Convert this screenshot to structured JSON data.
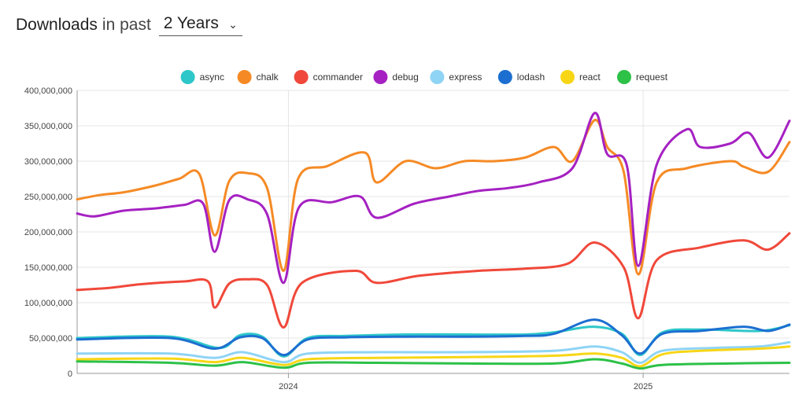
{
  "header": {
    "title": "Downloads",
    "title_rest": "in past",
    "range_value": "2 Years"
  },
  "chart_data": {
    "type": "line",
    "title": "",
    "xlabel": "",
    "ylabel": "",
    "ylim": [
      0,
      400000000
    ],
    "yticks": [
      0,
      50000000,
      100000000,
      150000000,
      200000000,
      250000000,
      300000000,
      350000000,
      400000000
    ],
    "ytick_labels": [
      "0",
      "50,000,000",
      "100,000,000",
      "150,000,000",
      "200,000,000",
      "250,000,000",
      "300,000,000",
      "350,000,000",
      "400,000,000"
    ],
    "xlim": [
      "2023-05-28",
      "2025-06-01"
    ],
    "xticks": [
      "2024-01-01",
      "2025-01-01"
    ],
    "xtick_labels": [
      "2024",
      "2025"
    ],
    "grid": true,
    "legend_position": "top",
    "series": [
      {
        "name": "async",
        "color": "#2ec7c9",
        "points": [
          [
            "2023-05-28",
            50000000
          ],
          [
            "2023-09-01",
            52000000
          ],
          [
            "2023-10-22",
            36000000
          ],
          [
            "2023-11-12",
            54000000
          ],
          [
            "2023-12-05",
            52000000
          ],
          [
            "2023-12-27",
            24000000
          ],
          [
            "2024-01-21",
            50000000
          ],
          [
            "2024-03-01",
            53000000
          ],
          [
            "2024-05-01",
            55000000
          ],
          [
            "2024-07-01",
            55000000
          ],
          [
            "2024-09-01",
            55000000
          ],
          [
            "2024-10-01",
            58000000
          ],
          [
            "2024-11-10",
            66000000
          ],
          [
            "2024-12-10",
            56000000
          ],
          [
            "2024-12-29",
            26000000
          ],
          [
            "2025-01-21",
            58000000
          ],
          [
            "2025-03-01",
            62000000
          ],
          [
            "2025-05-01",
            60000000
          ],
          [
            "2025-06-01",
            68000000
          ]
        ]
      },
      {
        "name": "chalk",
        "color": "#f58a25",
        "points": [
          [
            "2023-05-28",
            246000000
          ],
          [
            "2023-06-20",
            252000000
          ],
          [
            "2023-07-15",
            256000000
          ],
          [
            "2023-08-15",
            265000000
          ],
          [
            "2023-09-10",
            275000000
          ],
          [
            "2023-10-01",
            282000000
          ],
          [
            "2023-10-17",
            195000000
          ],
          [
            "2023-11-01",
            272000000
          ],
          [
            "2023-11-20",
            283000000
          ],
          [
            "2023-12-10",
            262000000
          ],
          [
            "2023-12-27",
            145000000
          ],
          [
            "2024-01-11",
            275000000
          ],
          [
            "2024-02-10",
            293000000
          ],
          [
            "2024-03-20",
            312000000
          ],
          [
            "2024-04-01",
            270000000
          ],
          [
            "2024-05-01",
            300000000
          ],
          [
            "2024-06-01",
            290000000
          ],
          [
            "2024-07-01",
            300000000
          ],
          [
            "2024-08-01",
            300000000
          ],
          [
            "2024-09-01",
            305000000
          ],
          [
            "2024-10-01",
            320000000
          ],
          [
            "2024-10-20",
            300000000
          ],
          [
            "2024-11-12",
            358000000
          ],
          [
            "2024-11-25",
            320000000
          ],
          [
            "2024-12-12",
            285000000
          ],
          [
            "2024-12-27",
            140000000
          ],
          [
            "2025-01-15",
            270000000
          ],
          [
            "2025-02-15",
            290000000
          ],
          [
            "2025-04-01",
            300000000
          ],
          [
            "2025-04-15",
            292000000
          ],
          [
            "2025-05-10",
            285000000
          ],
          [
            "2025-06-01",
            327000000
          ]
        ]
      },
      {
        "name": "commander",
        "color": "#f0483a",
        "points": [
          [
            "2023-05-28",
            118000000
          ],
          [
            "2023-07-01",
            121000000
          ],
          [
            "2023-08-01",
            126000000
          ],
          [
            "2023-09-15",
            130000000
          ],
          [
            "2023-10-10",
            130000000
          ],
          [
            "2023-10-17",
            93000000
          ],
          [
            "2023-11-01",
            127000000
          ],
          [
            "2023-11-20",
            133000000
          ],
          [
            "2023-12-10",
            125000000
          ],
          [
            "2023-12-27",
            65000000
          ],
          [
            "2024-01-15",
            128000000
          ],
          [
            "2024-03-10",
            145000000
          ],
          [
            "2024-04-01",
            128000000
          ],
          [
            "2024-05-15",
            138000000
          ],
          [
            "2024-07-15",
            145000000
          ],
          [
            "2024-09-01",
            148000000
          ],
          [
            "2024-10-15",
            155000000
          ],
          [
            "2024-11-12",
            185000000
          ],
          [
            "2024-12-12",
            150000000
          ],
          [
            "2024-12-27",
            78000000
          ],
          [
            "2025-01-15",
            160000000
          ],
          [
            "2025-03-01",
            178000000
          ],
          [
            "2025-04-15",
            188000000
          ],
          [
            "2025-05-10",
            175000000
          ],
          [
            "2025-06-01",
            198000000
          ]
        ]
      },
      {
        "name": "debug",
        "color": "#a521c2",
        "points": [
          [
            "2023-05-28",
            226000000
          ],
          [
            "2023-06-15",
            222000000
          ],
          [
            "2023-07-15",
            230000000
          ],
          [
            "2023-08-15",
            233000000
          ],
          [
            "2023-09-15",
            238000000
          ],
          [
            "2023-10-05",
            240000000
          ],
          [
            "2023-10-17",
            172000000
          ],
          [
            "2023-11-01",
            245000000
          ],
          [
            "2023-11-20",
            246000000
          ],
          [
            "2023-12-10",
            225000000
          ],
          [
            "2023-12-27",
            128000000
          ],
          [
            "2024-01-12",
            235000000
          ],
          [
            "2024-02-15",
            242000000
          ],
          [
            "2024-03-15",
            250000000
          ],
          [
            "2024-04-01",
            220000000
          ],
          [
            "2024-05-10",
            240000000
          ],
          [
            "2024-06-15",
            250000000
          ],
          [
            "2024-07-15",
            258000000
          ],
          [
            "2024-08-15",
            262000000
          ],
          [
            "2024-09-15",
            270000000
          ],
          [
            "2024-10-20",
            290000000
          ],
          [
            "2024-11-12",
            368000000
          ],
          [
            "2024-11-25",
            310000000
          ],
          [
            "2024-12-15",
            295000000
          ],
          [
            "2024-12-27",
            152000000
          ],
          [
            "2025-01-15",
            295000000
          ],
          [
            "2025-02-15",
            345000000
          ],
          [
            "2025-03-01",
            320000000
          ],
          [
            "2025-04-01",
            325000000
          ],
          [
            "2025-04-20",
            340000000
          ],
          [
            "2025-05-10",
            305000000
          ],
          [
            "2025-06-01",
            357000000
          ]
        ]
      },
      {
        "name": "express",
        "color": "#8fd4f5",
        "points": [
          [
            "2023-05-28",
            28000000
          ],
          [
            "2023-09-01",
            28000000
          ],
          [
            "2023-10-17",
            22000000
          ],
          [
            "2023-11-15",
            30000000
          ],
          [
            "2023-12-27",
            16000000
          ],
          [
            "2024-01-21",
            28000000
          ],
          [
            "2024-04-01",
            30000000
          ],
          [
            "2024-07-01",
            30000000
          ],
          [
            "2024-10-01",
            32000000
          ],
          [
            "2024-11-12",
            38000000
          ],
          [
            "2024-12-10",
            30000000
          ],
          [
            "2024-12-29",
            15000000
          ],
          [
            "2025-01-21",
            32000000
          ],
          [
            "2025-03-15",
            36000000
          ],
          [
            "2025-05-01",
            38000000
          ],
          [
            "2025-06-01",
            44000000
          ]
        ]
      },
      {
        "name": "lodash",
        "color": "#1c6fd1",
        "points": [
          [
            "2023-05-28",
            48000000
          ],
          [
            "2023-09-01",
            50000000
          ],
          [
            "2023-10-17",
            35000000
          ],
          [
            "2023-11-12",
            51000000
          ],
          [
            "2023-12-05",
            50000000
          ],
          [
            "2023-12-27",
            26000000
          ],
          [
            "2024-01-21",
            48000000
          ],
          [
            "2024-03-01",
            51000000
          ],
          [
            "2024-05-01",
            52000000
          ],
          [
            "2024-07-01",
            52000000
          ],
          [
            "2024-09-01",
            53000000
          ],
          [
            "2024-10-01",
            56000000
          ],
          [
            "2024-11-12",
            76000000
          ],
          [
            "2024-12-10",
            54000000
          ],
          [
            "2024-12-29",
            28000000
          ],
          [
            "2025-01-21",
            56000000
          ],
          [
            "2025-03-01",
            60000000
          ],
          [
            "2025-04-15",
            66000000
          ],
          [
            "2025-05-10",
            60000000
          ],
          [
            "2025-06-01",
            69000000
          ]
        ]
      },
      {
        "name": "react",
        "color": "#f7d616",
        "points": [
          [
            "2023-05-28",
            20000000
          ],
          [
            "2023-09-01",
            21000000
          ],
          [
            "2023-10-17",
            16000000
          ],
          [
            "2023-11-15",
            22000000
          ],
          [
            "2023-12-27",
            12000000
          ],
          [
            "2024-01-21",
            20000000
          ],
          [
            "2024-04-01",
            22000000
          ],
          [
            "2024-07-01",
            23000000
          ],
          [
            "2024-10-01",
            25000000
          ],
          [
            "2024-11-12",
            28000000
          ],
          [
            "2024-12-10",
            22000000
          ],
          [
            "2024-12-29",
            10000000
          ],
          [
            "2025-01-21",
            27000000
          ],
          [
            "2025-03-01",
            32000000
          ],
          [
            "2025-05-01",
            35000000
          ],
          [
            "2025-06-01",
            38000000
          ]
        ]
      },
      {
        "name": "request",
        "color": "#2dc148",
        "points": [
          [
            "2023-05-28",
            17000000
          ],
          [
            "2023-09-01",
            15000000
          ],
          [
            "2023-10-17",
            11000000
          ],
          [
            "2023-11-15",
            16000000
          ],
          [
            "2023-12-27",
            8000000
          ],
          [
            "2024-01-21",
            15000000
          ],
          [
            "2024-04-01",
            15000000
          ],
          [
            "2024-07-01",
            14000000
          ],
          [
            "2024-10-01",
            14000000
          ],
          [
            "2024-11-12",
            20000000
          ],
          [
            "2024-12-10",
            14000000
          ],
          [
            "2024-12-29",
            7000000
          ],
          [
            "2025-01-21",
            12000000
          ],
          [
            "2025-04-01",
            14000000
          ],
          [
            "2025-06-01",
            15000000
          ]
        ]
      }
    ]
  }
}
